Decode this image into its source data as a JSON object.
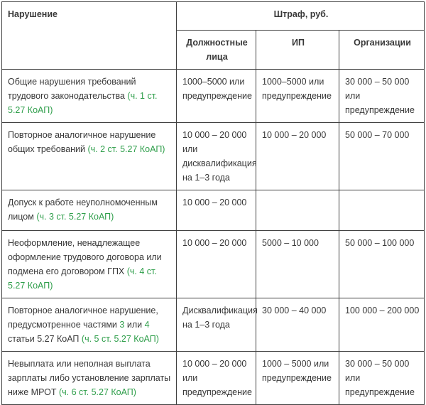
{
  "colors": {
    "link_green": "#2e9e4a",
    "text": "#383838",
    "border": "#3f3f3f"
  },
  "table": {
    "header": {
      "violation": "Нарушение",
      "fine_group": "Штраф, руб.",
      "columns": [
        "Должностные лица",
        "ИП",
        "Организации"
      ]
    },
    "rows": [
      {
        "violation_parts": [
          {
            "text": "Общие нарушения требований трудового законодательства ",
            "link": false
          },
          {
            "text": "(ч. 1 ст. 5.27 КоАП)",
            "link": true
          }
        ],
        "officials": "1000–5000 или предупреждение",
        "ip": "1000–5000 или предупреждение",
        "organizations": "30 000 – 50 000 или предупреждение"
      },
      {
        "violation_parts": [
          {
            "text": "Повторное аналогичное нарушение общих требований ",
            "link": false
          },
          {
            "text": "(ч. 2 ст. 5.27 КоАП)",
            "link": true
          }
        ],
        "officials": "10 000 – 20 000 или дисквалификация на 1–3 года",
        "ip": "10 000 – 20 000",
        "organizations": "50 000 – 70 000"
      },
      {
        "violation_parts": [
          {
            "text": "Допуск к работе неуполномоченным лицом ",
            "link": false
          },
          {
            "text": "(ч. 3 ст. 5.27 КоАП)",
            "link": true
          }
        ],
        "officials": "10 000 – 20 000",
        "ip": "",
        "organizations": ""
      },
      {
        "violation_parts": [
          {
            "text": "Неоформление, ненадлежащее оформление трудового договора или подмена его договором ГПХ ",
            "link": false
          },
          {
            "text": "(ч. 4 ст. 5.27 КоАП)",
            "link": true
          }
        ],
        "officials": "10 000 – 20 000",
        "ip": "5000 – 10 000",
        "organizations": "50 000 – 100 000"
      },
      {
        "violation_parts": [
          {
            "text": "Повторное аналогичное нарушение, предусмотренное частями ",
            "link": false
          },
          {
            "text": "3",
            "link": true
          },
          {
            "text": " или ",
            "link": false
          },
          {
            "text": "4",
            "link": true
          },
          {
            "text": " статьи 5.27 КоАП ",
            "link": false
          },
          {
            "text": "(ч. 5 ст. 5.27 КоАП)",
            "link": true
          }
        ],
        "officials": "Дисквалификация на 1–3 года",
        "ip": "30 000 – 40 000",
        "organizations": "100 000 – 200 000"
      },
      {
        "violation_parts": [
          {
            "text": "Невыплата или неполная выплата зарплаты либо установление зарплаты ниже МРОТ ",
            "link": false
          },
          {
            "text": "(ч. 6 ст. 5.27 КоАП)",
            "link": true
          }
        ],
        "officials": "10 000 – 20 000 или предупреждение",
        "ip": "1000 – 5000 или предупреждение",
        "organizations": "30 000 – 50 000 или предупреждение"
      }
    ]
  }
}
